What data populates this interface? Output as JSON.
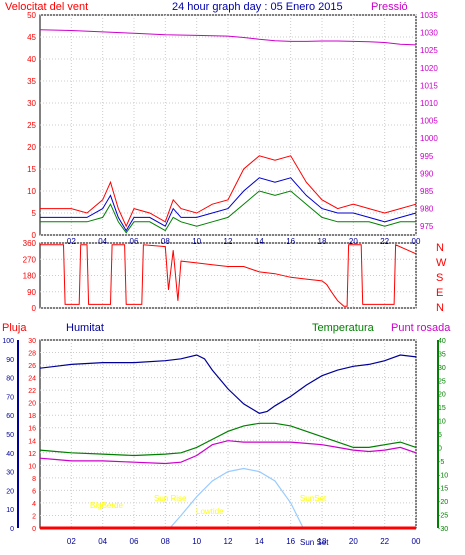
{
  "header": {
    "left_label": "Velocitat del vent",
    "title": "24 hour graph day : 05 Enero 2015",
    "right_label": "Pressió"
  },
  "colors": {
    "wind": "#ff0000",
    "wind_avg": "#0000cc",
    "gust_mid": "#008000",
    "pressure": "#cc00cc",
    "humidity": "#000099",
    "temperature": "#008000",
    "dewpoint": "#cc00cc",
    "rain": "#ff0000",
    "solar": "#99ccff",
    "sun_text": "#ffff00"
  },
  "chart_data": [
    {
      "type": "line",
      "name": "wind-pressure-panel",
      "left_axis": {
        "ticks": [
          "50",
          "45",
          "40",
          "35",
          "30",
          "25",
          "20",
          "15",
          "10",
          "5",
          "0"
        ],
        "ylim": [
          0,
          50
        ]
      },
      "right_axis": {
        "ticks": [
          "1035",
          "1030",
          "1025",
          "1020",
          "1015",
          "1010",
          "1005",
          "1000",
          "995",
          "990",
          "985",
          "980",
          "975"
        ],
        "ylim": [
          972.5,
          1035
        ]
      },
      "x_ticks": [
        "02",
        "04",
        "06",
        "08",
        "10",
        "12",
        "14",
        "16",
        "18",
        "20",
        "22",
        "00"
      ],
      "pressure": {
        "x": [
          0,
          2,
          4,
          6,
          8,
          10,
          12,
          13,
          14,
          15,
          16,
          17,
          18,
          19,
          20,
          21,
          22,
          23,
          24
        ],
        "y": [
          1030.8,
          1030.6,
          1030.2,
          1029.8,
          1029.4,
          1029.2,
          1029.0,
          1028.6,
          1028.1,
          1027.7,
          1027.5,
          1027.5,
          1027.6,
          1027.6,
          1027.5,
          1027.4,
          1027.2,
          1026.7,
          1026.5
        ]
      },
      "wind_gust": {
        "x": [
          0,
          1,
          2,
          3,
          4,
          4.5,
          5,
          5.5,
          6,
          7,
          8,
          8.5,
          9,
          10,
          11,
          12,
          13,
          14,
          15,
          16,
          17,
          18,
          19,
          20,
          21,
          22,
          23,
          24
        ],
        "y": [
          6,
          6,
          6,
          5,
          8,
          12,
          6,
          2,
          6,
          5,
          3,
          8,
          6,
          5,
          7,
          8,
          15,
          18,
          17,
          18,
          12,
          8,
          6,
          7,
          6,
          5,
          6,
          7
        ]
      },
      "wind_avg": {
        "x": [
          0,
          1,
          2,
          3,
          4,
          4.5,
          5,
          5.5,
          6,
          7,
          8,
          8.5,
          9,
          10,
          11,
          12,
          13,
          14,
          15,
          16,
          17,
          18,
          19,
          20,
          21,
          22,
          23,
          24
        ],
        "y": [
          4,
          4,
          4,
          4,
          6,
          9,
          4,
          1,
          4,
          4,
          2,
          6,
          4,
          4,
          5,
          6,
          10,
          13,
          12,
          13,
          9,
          6,
          5,
          5,
          4,
          3,
          4,
          5
        ]
      },
      "wind_mid": {
        "x": [
          0,
          1,
          2,
          3,
          4,
          4.5,
          5,
          5.5,
          6,
          7,
          8,
          8.5,
          9,
          10,
          11,
          12,
          13,
          14,
          15,
          16,
          17,
          18,
          19,
          20,
          21,
          22,
          23,
          24
        ],
        "y": [
          3,
          3,
          3,
          3,
          4,
          7,
          3,
          0.5,
          3,
          3,
          1,
          4,
          3,
          2,
          3,
          4,
          7,
          10,
          9,
          10,
          7,
          4,
          3,
          3,
          3,
          2,
          3,
          3
        ]
      }
    },
    {
      "type": "line",
      "name": "wind-direction-panel",
      "left_axis": {
        "ticks": [
          "360",
          "270",
          "180",
          "90",
          "0"
        ],
        "ylim": [
          0,
          360
        ]
      },
      "right_axis": {
        "ticks": [
          "N",
          "W",
          "S",
          "E",
          "N"
        ]
      },
      "x": [
        0,
        1.5,
        1.6,
        2.5,
        2.6,
        3,
        3.1,
        4.5,
        4.6,
        5.4,
        5.5,
        6.5,
        6.6,
        8,
        8.2,
        8.5,
        8.8,
        9,
        10,
        11,
        12,
        13,
        14,
        15,
        16,
        17,
        18,
        18.3,
        18.6,
        19,
        19.4,
        19.6,
        19.7,
        20.5,
        20.6,
        22.6,
        22.7,
        24
      ],
      "y": [
        350,
        350,
        20,
        20,
        350,
        350,
        20,
        20,
        350,
        350,
        20,
        20,
        350,
        340,
        100,
        320,
        40,
        260,
        250,
        240,
        230,
        230,
        200,
        190,
        170,
        160,
        150,
        130,
        90,
        40,
        10,
        10,
        350,
        350,
        20,
        20,
        350,
        300
      ]
    },
    {
      "type": "line",
      "name": "humidity-temperature-panel",
      "left_labels": [
        "Pluja",
        "Humitat"
      ],
      "right_labels": [
        "Temperatura",
        "Punt rosada"
      ],
      "humidity_axis": {
        "ticks": [
          "100",
          "90",
          "80",
          "70",
          "60",
          "50",
          "40",
          "30",
          "20",
          "10",
          "0"
        ],
        "ylim": [
          0,
          100
        ]
      },
      "rain_axis": {
        "ticks": [
          "30",
          "28",
          "26",
          "24",
          "22",
          "20",
          "18",
          "16",
          "14",
          "12",
          "10",
          "8",
          "6",
          "4",
          "2",
          "0"
        ],
        "ylim": [
          0,
          30
        ]
      },
      "temperature_axis": {
        "ticks": [
          "40",
          "35",
          "30",
          "25",
          "20",
          "15",
          "10",
          "5",
          "0",
          "-5",
          "-10",
          "-15",
          "-20",
          "-25",
          "-30"
        ],
        "ylim": [
          -30,
          40
        ]
      },
      "x_ticks": [
        "02",
        "04",
        "06",
        "08",
        "10",
        "12",
        "14",
        "16",
        "18",
        "20",
        "22",
        "00"
      ],
      "humidity": {
        "x": [
          0,
          1,
          2,
          4,
          6,
          8,
          9,
          10,
          10.5,
          11,
          12,
          13,
          14,
          14.5,
          15,
          16,
          17,
          18,
          19,
          20,
          21,
          22,
          23,
          24
        ],
        "y": [
          85,
          86,
          87,
          88,
          88,
          89,
          90,
          92,
          90,
          84,
          74,
          66,
          61,
          62,
          65,
          70,
          76,
          81,
          84,
          86,
          87,
          89,
          92,
          91
        ]
      },
      "temperature": {
        "x": [
          0,
          1,
          2,
          4,
          6,
          8,
          9,
          10,
          11,
          12,
          13,
          14,
          15,
          16,
          17,
          18,
          19,
          20,
          21,
          22,
          23,
          24
        ],
        "y": [
          -1,
          -1.5,
          -2,
          -2.5,
          -3,
          -2.5,
          -2,
          0,
          3,
          6,
          8,
          9,
          9,
          8,
          6,
          4,
          2,
          0,
          0,
          1,
          2,
          0
        ]
      },
      "dewpoint": {
        "x": [
          0,
          1,
          2,
          4,
          6,
          8,
          9,
          10,
          11,
          12,
          13,
          14,
          15,
          16,
          17,
          18,
          19,
          20,
          21,
          22,
          23,
          24
        ],
        "y": [
          -4,
          -4.5,
          -5,
          -5,
          -5.5,
          -6,
          -5.5,
          -3,
          1,
          2.5,
          2,
          2,
          2,
          2,
          1.5,
          1,
          0,
          -1,
          -1.5,
          -1,
          0,
          -2
        ]
      },
      "rain": {
        "x": [
          0,
          24
        ],
        "y": [
          0,
          0
        ]
      },
      "solar": {
        "x": [
          8.3,
          9,
          10,
          11,
          12,
          13,
          14,
          15,
          16,
          16.8
        ],
        "y": [
          0,
          2,
          5,
          7.5,
          9,
          9.5,
          9,
          7.5,
          4,
          0
        ]
      },
      "annotations": [
        "BigBerde",
        "Sun Rise",
        "Lowtide",
        "SunSet",
        "Sun Set"
      ]
    }
  ]
}
